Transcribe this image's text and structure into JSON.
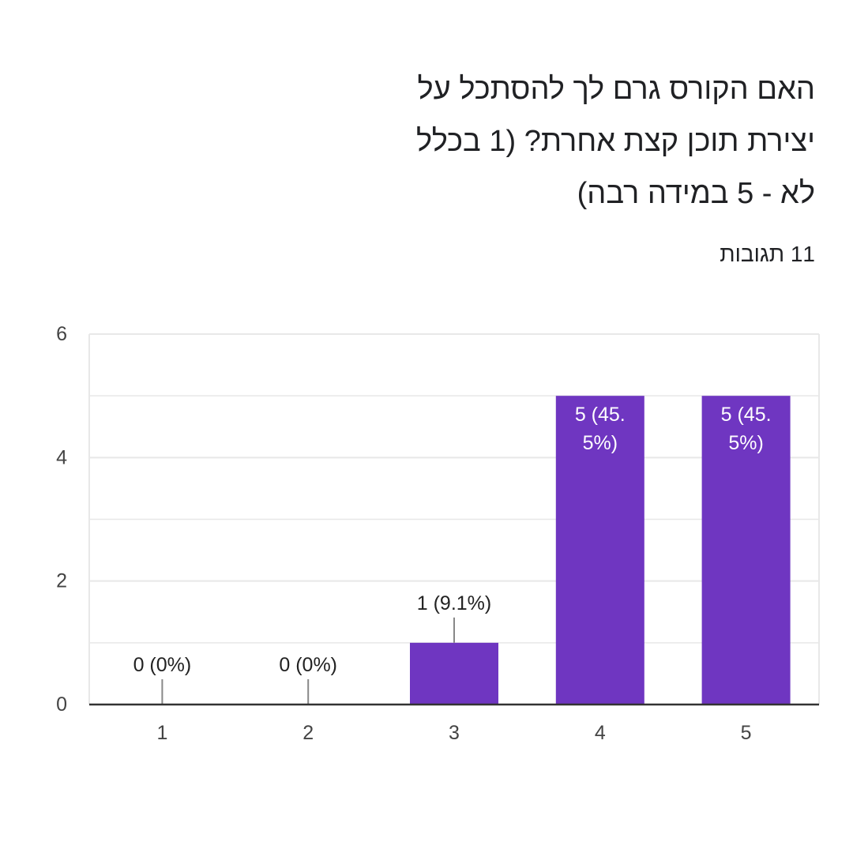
{
  "question": {
    "title_lines": [
      "האם הקורס גרם לך להסתכל על",
      "יצירת תוכן קצת אחרת? (1 בכלל",
      "לא - 5 במידה רבה)"
    ],
    "responses_label": "11 תגובות"
  },
  "colors": {
    "bar": "#6f36c1",
    "grid": "#e8e8e8",
    "axis": "#333333",
    "tick_text": "#444444",
    "label_dark": "#222222",
    "label_light": "#ffffff"
  },
  "chart_data": {
    "type": "bar",
    "categories": [
      "1",
      "2",
      "3",
      "4",
      "5"
    ],
    "values": [
      0,
      0,
      1,
      5,
      5
    ],
    "data_labels": [
      [
        "0 (0%)"
      ],
      [
        "0 (0%)"
      ],
      [
        "1 (9.1%)"
      ],
      [
        "5 (45.",
        "5%)"
      ],
      [
        "5 (45.",
        "5%)"
      ]
    ],
    "y_ticks": [
      "0",
      "2",
      "4",
      "6"
    ],
    "ylim": [
      0,
      6
    ],
    "minor_grid_step": 1,
    "grid": true,
    "legend": "none"
  }
}
